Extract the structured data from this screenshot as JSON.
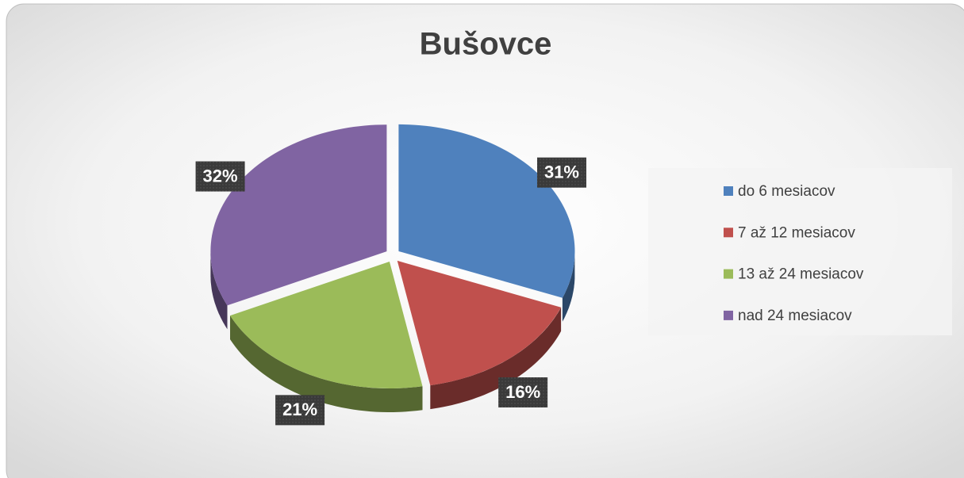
{
  "chart_data": {
    "type": "pie",
    "title": "Bušovce",
    "categories": [
      "do 6 mesiacov",
      "7 až 12 mesiacov",
      "13 až 24 mesiacov",
      "nad 24 mesiacov"
    ],
    "values": [
      31,
      16,
      21,
      32
    ],
    "value_labels": [
      "31%",
      "16%",
      "21%",
      "32%"
    ],
    "colors": [
      "#4f81bd",
      "#c0504d",
      "#9bbb59",
      "#8064a2"
    ],
    "legend": "right"
  }
}
